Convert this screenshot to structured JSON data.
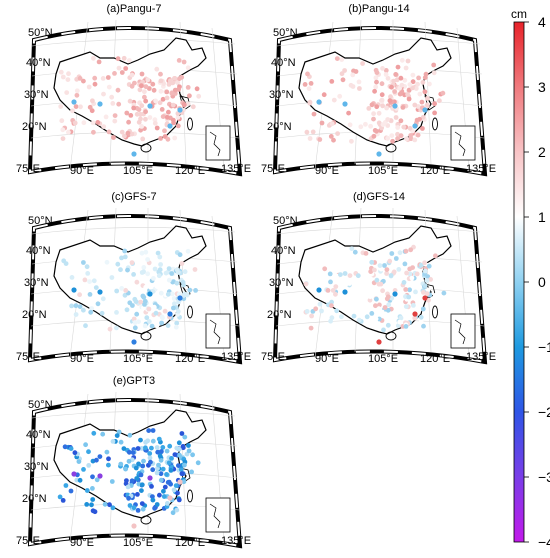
{
  "panels": [
    {
      "id": "a",
      "title": "(a)Pangu-7",
      "colors": [
        "#f6d3d3",
        "#f2b8b9",
        "#efa9aa",
        "#f9e2e2",
        "#fbeaea",
        "#ef9fa1"
      ],
      "accent": [
        "#5fb6ea"
      ]
    },
    {
      "id": "b",
      "title": "(b)Pangu-14",
      "colors": [
        "#f6d3d3",
        "#f2b8b9",
        "#efa9aa",
        "#f9e2e2",
        "#fbeaea",
        "#ef9fa1"
      ],
      "accent": [
        "#5fb6ea"
      ]
    },
    {
      "id": "c",
      "title": "(c)GFS-7",
      "colors": [
        "#d8eef8",
        "#bfe3f4",
        "#f6d9da",
        "#ffffff",
        "#9fd3ef",
        "#ecf6fb"
      ],
      "accent": [
        "#1e90d8",
        "#2f7fe0"
      ]
    },
    {
      "id": "d",
      "title": "(d)GFS-14",
      "colors": [
        "#d8eef8",
        "#bfe3f4",
        "#f6d9da",
        "#ffffff",
        "#f2bcbd",
        "#9fd3ef"
      ],
      "accent": [
        "#1e90d8",
        "#e04040"
      ]
    },
    {
      "id": "e",
      "title": "(e)GPT3",
      "colors": [
        "#3aa7e6",
        "#1e90d8",
        "#2f6fe0",
        "#7cc6ee",
        "#b9e0f4",
        "#2a55d8"
      ],
      "accent": [
        "#8a3fe0",
        "#f3c3c4"
      ]
    }
  ],
  "axes": {
    "lat_labels": [
      "50°N",
      "40°N",
      "30°N",
      "20°N"
    ],
    "lon_labels": [
      "75°E",
      "90°E",
      "105°E",
      "120°E",
      "135°E"
    ]
  },
  "colorbar": {
    "unit": "cm",
    "ticks": [
      "4",
      "3",
      "2",
      "1",
      "0",
      "−1",
      "−2",
      "−3",
      "−4"
    ],
    "gradient": [
      "#e8232a",
      "#f07a7e",
      "#f8c4c6",
      "#ffffff",
      "#8fd1f1",
      "#1e9ae0",
      "#2f55e6",
      "#7a3ee8",
      "#c21aea"
    ]
  }
}
